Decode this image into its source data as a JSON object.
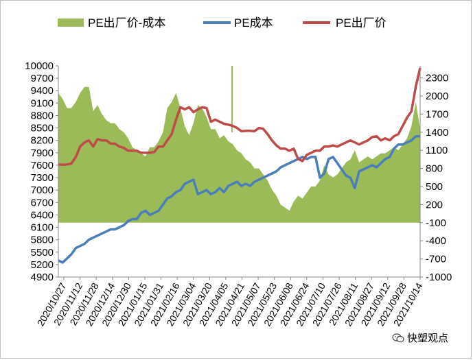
{
  "chart_data": {
    "type": "area+line",
    "legend": [
      {
        "label": "PE出厂价-成本",
        "color": "#9bbb59",
        "kind": "area"
      },
      {
        "label": "PE成本",
        "color": "#4a7ebb",
        "kind": "line"
      },
      {
        "label": "PE出厂价",
        "color": "#be4b48",
        "kind": "line"
      }
    ],
    "left_axis": {
      "min": 4900,
      "max": 10000,
      "ticks": [
        4900,
        5200,
        5500,
        5800,
        6100,
        6400,
        6700,
        7000,
        7300,
        7600,
        7900,
        8200,
        8500,
        8800,
        9100,
        9400,
        9700,
        10000
      ]
    },
    "right_axis": {
      "min": -1000,
      "max": 2500,
      "ticks": [
        -1000,
        -700,
        -400,
        -100,
        200,
        500,
        800,
        1100,
        1400,
        1700,
        2000,
        2300
      ]
    },
    "x_tick_labels": [
      "2020/10/27",
      "2020/11/12",
      "2020/11/28",
      "2020/12/14",
      "2020/12/30",
      "2021/01/15",
      "2021/01/31",
      "2021/02/16",
      "2021/03/04",
      "2021/03/20",
      "2021/04/05",
      "2021/04/21",
      "2021/05/07",
      "2021/05/23",
      "2021/06/08",
      "2021/06/24",
      "2021/07/10",
      "2021/07/26",
      "2021/08/11",
      "2021/08/27",
      "2021/09/12",
      "2021/09/28",
      "2021/10/14"
    ],
    "series_note": "approximate values sampled roughly every 4 days, read from the chart",
    "pe_factory_price": [
      7620,
      7610,
      7620,
      7640,
      7800,
      8050,
      8150,
      8200,
      8050,
      8230,
      8200,
      8200,
      8120,
      8120,
      8050,
      8020,
      7950,
      7950,
      7950,
      7900,
      7900,
      7900,
      7920,
      8050,
      8050,
      8200,
      8350,
      8700,
      9000,
      8950,
      9000,
      8880,
      8950,
      9000,
      8980,
      8650,
      8700,
      8650,
      8600,
      8580,
      8550,
      8500,
      8420,
      8430,
      8430,
      8420,
      8500,
      8480,
      8350,
      8200,
      8080,
      8000,
      8000,
      7950,
      8000,
      7750,
      7700,
      7850,
      7900,
      7950,
      7950,
      8050,
      8050,
      8080,
      8050,
      8100,
      8150,
      8200,
      8150,
      8100,
      8150,
      8200,
      8280,
      8300,
      8200,
      8250,
      8200,
      8300,
      8350,
      8550,
      8750,
      8900,
      9500,
      9950
    ],
    "pe_cost": [
      5300,
      5250,
      5350,
      5450,
      5600,
      5650,
      5700,
      5800,
      5850,
      5900,
      5950,
      6000,
      6050,
      6050,
      6100,
      6150,
      6250,
      6300,
      6300,
      6450,
      6500,
      6400,
      6450,
      6500,
      6650,
      6800,
      6850,
      6950,
      7000,
      7150,
      7200,
      7250,
      6900,
      6950,
      7000,
      6900,
      6950,
      7050,
      6950,
      7100,
      7150,
      7200,
      7100,
      7150,
      7100,
      7200,
      7250,
      7300,
      7350,
      7400,
      7450,
      7550,
      7600,
      7650,
      7700,
      7750,
      7800,
      7750,
      7800,
      7800,
      7300,
      7400,
      7750,
      7800,
      7650,
      7500,
      7350,
      7300,
      7050,
      7450,
      7500,
      7550,
      7600,
      7550,
      7650,
      7750,
      7800,
      8000,
      8100,
      8100,
      8150,
      8200,
      8300,
      8300
    ],
    "spread": [
      2050,
      1950,
      1800,
      1800,
      1900,
      2050,
      2150,
      2150,
      1750,
      1850,
      1700,
      1600,
      1550,
      1550,
      1450,
      1400,
      1300,
      1150,
      1100,
      1050,
      1000,
      1150,
      1150,
      1250,
      1400,
      1800,
      1900,
      2050,
      1800,
      1500,
      1350,
      1550,
      1850,
      1800,
      1650,
      1450,
      1450,
      1300,
      1350,
      1250,
      1200,
      1100,
      1050,
      950,
      900,
      800,
      800,
      700,
      600,
      450,
      350,
      200,
      150,
      100,
      250,
      350,
      300,
      400,
      500,
      500,
      600,
      850,
      700,
      650,
      700,
      800,
      900,
      950,
      1100,
      900,
      950,
      1000,
      950,
      1000,
      1050,
      1050,
      1100,
      1150,
      1100,
      1200,
      1300,
      1500,
      1900,
      1450
    ]
  },
  "watermark": {
    "text": "快塑观点",
    "icon": "wechat-icon"
  }
}
